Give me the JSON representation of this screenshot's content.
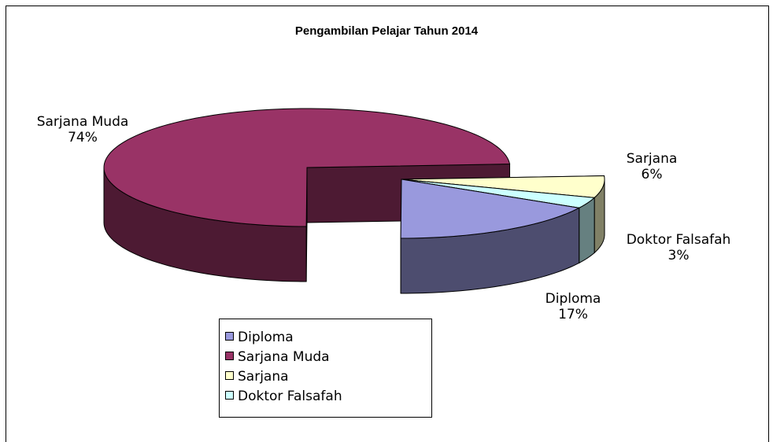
{
  "chart_data": {
    "type": "pie3d",
    "title": "Pengambilan Pelajar Tahun 2014",
    "categories": [
      "Diploma",
      "Sarjana Muda",
      "Sarjana",
      "Doktor Falsafah"
    ],
    "values": [
      17,
      74,
      6,
      3
    ],
    "value_labels": [
      "17%",
      "74%",
      "6%",
      "3%"
    ],
    "colors": [
      "#9999dd",
      "#993366",
      "#ffffcc",
      "#ccffff"
    ],
    "legend": "bottom"
  }
}
